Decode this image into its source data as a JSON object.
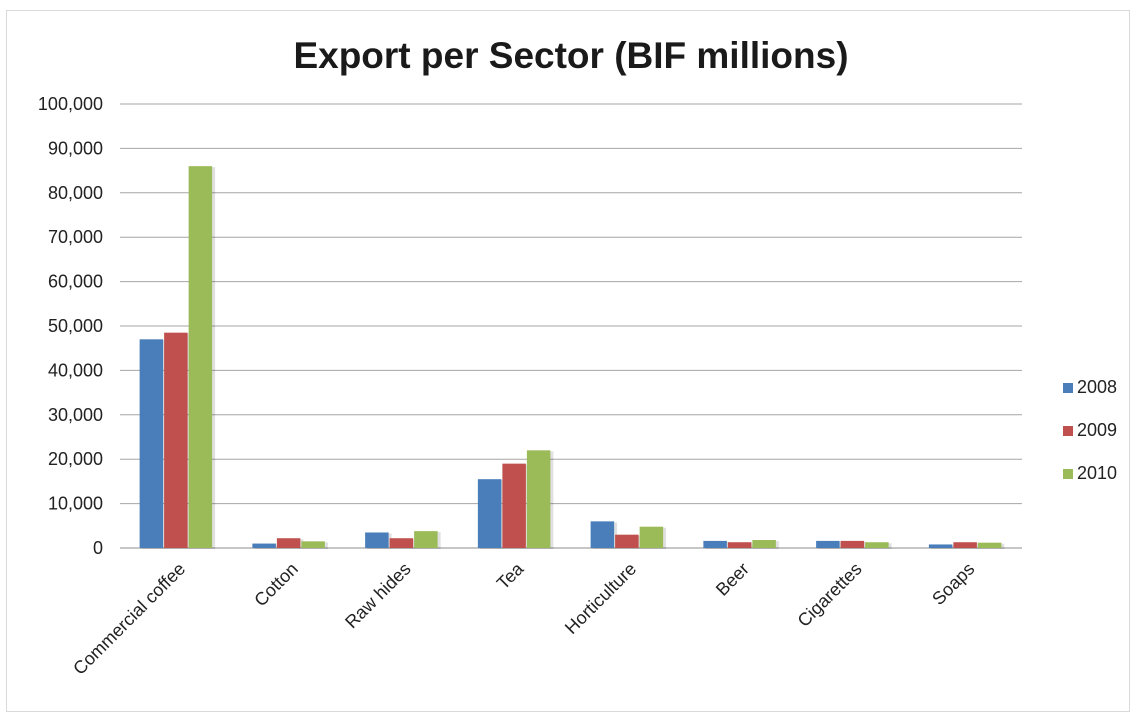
{
  "chart_data": {
    "type": "bar",
    "title": "Export per Sector (BIF millions)",
    "xlabel": "",
    "ylabel": "",
    "ylim": [
      0,
      100000
    ],
    "yticks": [
      "0",
      "10,000",
      "20,000",
      "30,000",
      "40,000",
      "50,000",
      "60,000",
      "70,000",
      "80,000",
      "90,000",
      "100,000"
    ],
    "categories": [
      "Commercial coffee",
      "Cotton",
      "Raw hides",
      "Tea",
      "Horticulture",
      "Beer",
      "Cigarettes",
      "Soaps"
    ],
    "series": [
      {
        "name": "2008",
        "color": "#4a7ebb",
        "values": [
          47000,
          1000,
          3500,
          15500,
          6000,
          1600,
          1600,
          800
        ]
      },
      {
        "name": "2009",
        "color": "#c0504d",
        "values": [
          48500,
          2200,
          2200,
          19000,
          3000,
          1300,
          1600,
          1300
        ]
      },
      {
        "name": "2010",
        "color": "#9bbb59",
        "values": [
          86000,
          1500,
          3800,
          22000,
          4800,
          1800,
          1300,
          1200
        ]
      }
    ],
    "grid": true,
    "legend": "right"
  }
}
